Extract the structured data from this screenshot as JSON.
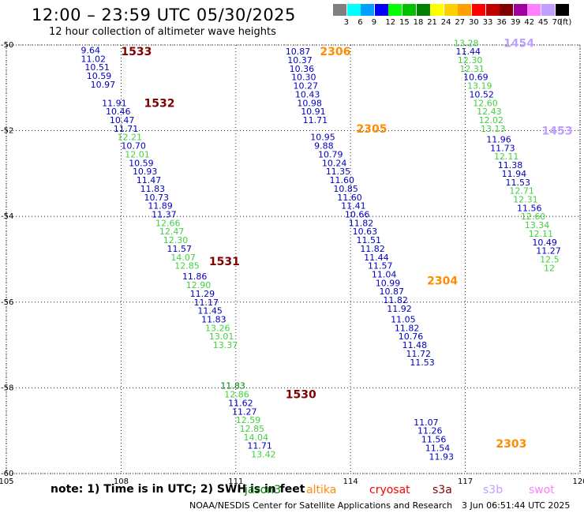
{
  "header": {
    "title": "12:00 – 23:59 UTC 05/30/2025",
    "subtitle": "12 hour collection of altimeter wave heights"
  },
  "colorbar": {
    "unit": "(ft)",
    "labels": [
      "3",
      "6",
      "9",
      "12",
      "15",
      "18",
      "21",
      "24",
      "27",
      "30",
      "33",
      "36",
      "39",
      "42",
      "45",
      "70"
    ],
    "colors": [
      "#808080",
      "#00ffff",
      "#00a0ff",
      "#0000ff",
      "#00ff00",
      "#00c000",
      "#008000",
      "#ffff00",
      "#ffd000",
      "#ffa000",
      "#ff0000",
      "#c00000",
      "#800000",
      "#a000a0",
      "#ff80ff",
      "#c0a0ff",
      "#000000"
    ]
  },
  "footer": {
    "note": "note:  1) Time is in UTC; 2) SWH is in feet",
    "satellites": [
      {
        "name": "jason3",
        "color": "#008000"
      },
      {
        "name": "altika",
        "color": "#ff8c00"
      },
      {
        "name": "cryosat",
        "color": "#ff0000"
      },
      {
        "name": "s3a",
        "color": "#800000"
      },
      {
        "name": "s3b",
        "color": "#c0a0ff"
      },
      {
        "name": "swot",
        "color": "#ff80ff"
      }
    ],
    "credits": "NOAA/NESDIS Center for Satellite Applications and Research",
    "timestamp": "3 Jun 06:51:44 UTC 2025"
  },
  "chart_data": {
    "type": "scatter",
    "x_ticks": [
      "105",
      "108",
      "111",
      "114",
      "117",
      "120"
    ],
    "y_ticks": [
      "-50",
      "-52",
      "-54",
      "-56",
      "-58",
      "-60"
    ],
    "xlim": [
      105,
      120
    ],
    "ylim": [
      -60,
      -50
    ],
    "grid": true,
    "pass_labels": [
      {
        "text": "1533",
        "lon": 108.0,
        "lat": -50.15,
        "color": "#800000"
      },
      {
        "text": "1532",
        "lon": 108.6,
        "lat": -51.35,
        "color": "#800000"
      },
      {
        "text": "1531",
        "lon": 110.3,
        "lat": -55.05,
        "color": "#800000"
      },
      {
        "text": "1530",
        "lon": 112.3,
        "lat": -58.15,
        "color": "#800000"
      },
      {
        "text": "2306",
        "lon": 113.2,
        "lat": -50.15,
        "color": "#ff8c00"
      },
      {
        "text": "2305",
        "lon": 114.15,
        "lat": -51.95,
        "color": "#ff8c00"
      },
      {
        "text": "2304",
        "lon": 116.0,
        "lat": -55.5,
        "color": "#ff8c00"
      },
      {
        "text": "2303",
        "lon": 117.8,
        "lat": -59.3,
        "color": "#ff8c00"
      },
      {
        "text": "1454",
        "lon": 118.0,
        "lat": -49.95,
        "color": "#c0a0ff"
      },
      {
        "text": "1453",
        "lon": 119.0,
        "lat": -52.0,
        "color": "#c0a0ff"
      }
    ],
    "series": [
      {
        "name": "1533",
        "color": "#0000c0",
        "points": [
          {
            "lon": 106.95,
            "lat": -50.12,
            "swh": "9.64"
          },
          {
            "lon": 106.95,
            "lat": -50.32,
            "swh": "11.02"
          },
          {
            "lon": 107.05,
            "lat": -50.52,
            "swh": "10.51"
          },
          {
            "lon": 107.1,
            "lat": -50.72,
            "swh": "10.59"
          },
          {
            "lon": 107.2,
            "lat": -50.92,
            "swh": "10.97"
          }
        ]
      },
      {
        "name": "1532",
        "color": "#0000c0",
        "points": [
          {
            "lon": 107.5,
            "lat": -51.35,
            "swh": "11.91",
            "color": "#0000c0"
          },
          {
            "lon": 107.6,
            "lat": -51.55,
            "swh": "10.46",
            "color": "#0000c0"
          },
          {
            "lon": 107.7,
            "lat": -51.75,
            "swh": "10.47",
            "color": "#0000c0"
          },
          {
            "lon": 107.8,
            "lat": -51.95,
            "swh": "11.71",
            "color": "#0000c0"
          },
          {
            "lon": 107.9,
            "lat": -52.15,
            "swh": "12.21",
            "color": "#40d040"
          },
          {
            "lon": 108.0,
            "lat": -52.35,
            "swh": "10.70",
            "color": "#0000c0"
          },
          {
            "lon": 108.1,
            "lat": -52.55,
            "swh": "12.01",
            "color": "#40d040"
          },
          {
            "lon": 108.2,
            "lat": -52.75,
            "swh": "10.59",
            "color": "#0000c0"
          },
          {
            "lon": 108.3,
            "lat": -52.95,
            "swh": "10.93",
            "color": "#0000c0"
          },
          {
            "lon": 108.4,
            "lat": -53.15,
            "swh": "11.47",
            "color": "#0000c0"
          },
          {
            "lon": 108.5,
            "lat": -53.35,
            "swh": "11.83",
            "color": "#0000c0"
          },
          {
            "lon": 108.6,
            "lat": -53.55,
            "swh": "10.73",
            "color": "#0000c0"
          },
          {
            "lon": 108.7,
            "lat": -53.75,
            "swh": "11.89",
            "color": "#0000c0"
          },
          {
            "lon": 108.8,
            "lat": -53.95,
            "swh": "11.37",
            "color": "#0000c0"
          },
          {
            "lon": 108.9,
            "lat": -54.15,
            "swh": "12.66",
            "color": "#40d040"
          },
          {
            "lon": 109.0,
            "lat": -54.35,
            "swh": "12.47",
            "color": "#40d040"
          },
          {
            "lon": 109.1,
            "lat": -54.55,
            "swh": "12.30",
            "color": "#40d040"
          },
          {
            "lon": 109.2,
            "lat": -54.75,
            "swh": "11.57",
            "color": "#0000c0"
          },
          {
            "lon": 109.3,
            "lat": -54.95,
            "swh": "14.07",
            "color": "#40d040"
          },
          {
            "lon": 109.4,
            "lat": -55.15,
            "swh": "12.85",
            "color": "#40d040"
          }
        ]
      },
      {
        "name": "1531",
        "color": "#0000c0",
        "points": [
          {
            "lon": 109.6,
            "lat": -55.4,
            "swh": "11.86",
            "color": "#0000c0"
          },
          {
            "lon": 109.7,
            "lat": -55.6,
            "swh": "12.90",
            "color": "#40d040"
          },
          {
            "lon": 109.8,
            "lat": -55.8,
            "swh": "11.29",
            "color": "#0000c0"
          },
          {
            "lon": 109.9,
            "lat": -56.0,
            "swh": "11.17",
            "color": "#0000c0"
          },
          {
            "lon": 110.0,
            "lat": -56.2,
            "swh": "11.45",
            "color": "#0000c0"
          },
          {
            "lon": 110.1,
            "lat": -56.4,
            "swh": "11.83",
            "color": "#0000c0"
          },
          {
            "lon": 110.2,
            "lat": -56.6,
            "swh": "13.26",
            "color": "#40d040"
          },
          {
            "lon": 110.3,
            "lat": -56.8,
            "swh": "13.01",
            "color": "#40d040"
          },
          {
            "lon": 110.4,
            "lat": -57.0,
            "swh": "13.37",
            "color": "#40d040"
          }
        ]
      },
      {
        "name": "1530",
        "color": "#0000c0",
        "points": [
          {
            "lon": 110.6,
            "lat": -57.95,
            "swh": "11.83",
            "color": "#008000"
          },
          {
            "lon": 110.7,
            "lat": -58.15,
            "swh": "12.86",
            "color": "#40d040"
          },
          {
            "lon": 110.8,
            "lat": -58.35,
            "swh": "11.62",
            "color": "#0000c0"
          },
          {
            "lon": 110.9,
            "lat": -58.55,
            "swh": "11.27",
            "color": "#0000c0"
          },
          {
            "lon": 111.0,
            "lat": -58.75,
            "swh": "12.59",
            "color": "#40d040"
          },
          {
            "lon": 111.1,
            "lat": -58.95,
            "swh": "12.85",
            "color": "#40d040"
          },
          {
            "lon": 111.2,
            "lat": -59.15,
            "swh": "14.04",
            "color": "#40d040"
          },
          {
            "lon": 111.3,
            "lat": -59.35,
            "swh": "11.71",
            "color": "#0000c0"
          },
          {
            "lon": 111.4,
            "lat": -59.55,
            "swh": "13.42",
            "color": "#40d040"
          }
        ]
      },
      {
        "name": "2306",
        "color": "#0000c0",
        "points": [
          {
            "lon": 112.3,
            "lat": -50.15,
            "swh": "10.87"
          },
          {
            "lon": 112.35,
            "lat": -50.35,
            "swh": "10.37"
          },
          {
            "lon": 112.4,
            "lat": -50.55,
            "swh": "10.36"
          },
          {
            "lon": 112.45,
            "lat": -50.75,
            "swh": "10.30"
          },
          {
            "lon": 112.5,
            "lat": -50.95,
            "swh": "10.27"
          },
          {
            "lon": 112.55,
            "lat": -51.15,
            "swh": "10.43"
          },
          {
            "lon": 112.6,
            "lat": -51.35,
            "swh": "10.98"
          },
          {
            "lon": 112.7,
            "lat": -51.55,
            "swh": "10.91"
          },
          {
            "lon": 112.75,
            "lat": -51.75,
            "swh": "11.71"
          }
        ]
      },
      {
        "name": "2305",
        "color": "#0000c0",
        "points": [
          {
            "lon": 112.95,
            "lat": -52.15,
            "swh": "10.95"
          },
          {
            "lon": 113.05,
            "lat": -52.35,
            "swh": "9.88"
          },
          {
            "lon": 113.15,
            "lat": -52.55,
            "swh": "10.79"
          },
          {
            "lon": 113.25,
            "lat": -52.75,
            "swh": "10.24"
          },
          {
            "lon": 113.35,
            "lat": -52.95,
            "swh": "11.35"
          },
          {
            "lon": 113.45,
            "lat": -53.15,
            "swh": "11.60"
          },
          {
            "lon": 113.55,
            "lat": -53.35,
            "swh": "10.85"
          },
          {
            "lon": 113.65,
            "lat": -53.55,
            "swh": "11.60"
          },
          {
            "lon": 113.75,
            "lat": -53.75,
            "swh": "11.41"
          },
          {
            "lon": 113.85,
            "lat": -53.95,
            "swh": "10.66"
          },
          {
            "lon": 113.95,
            "lat": -54.15,
            "swh": "11.82"
          },
          {
            "lon": 114.05,
            "lat": -54.35,
            "swh": "10.63"
          },
          {
            "lon": 114.15,
            "lat": -54.55,
            "swh": "11.51"
          },
          {
            "lon": 114.25,
            "lat": -54.75,
            "swh": "11.82"
          },
          {
            "lon": 114.35,
            "lat": -54.95,
            "swh": "11.44"
          },
          {
            "lon": 114.45,
            "lat": -55.15,
            "swh": "11.57"
          },
          {
            "lon": 114.55,
            "lat": -55.35,
            "swh": "11.04"
          },
          {
            "lon": 114.65,
            "lat": -55.55,
            "swh": "10.99"
          },
          {
            "lon": 114.75,
            "lat": -55.75,
            "swh": "10.87"
          },
          {
            "lon": 114.85,
            "lat": -55.95,
            "swh": "11.82"
          },
          {
            "lon": 114.95,
            "lat": -56.15,
            "swh": "11.92"
          }
        ]
      },
      {
        "name": "2304",
        "color": "#0000c0",
        "points": [
          {
            "lon": 115.05,
            "lat": -56.4,
            "swh": "11.05"
          },
          {
            "lon": 115.15,
            "lat": -56.6,
            "swh": "11.82"
          },
          {
            "lon": 115.25,
            "lat": -56.8,
            "swh": "10.76"
          },
          {
            "lon": 115.35,
            "lat": -57.0,
            "swh": "11.48"
          },
          {
            "lon": 115.45,
            "lat": -57.2,
            "swh": "11.72"
          },
          {
            "lon": 115.55,
            "lat": -57.4,
            "swh": "11.53"
          },
          {
            "lon": 115.65,
            "lat": -58.8,
            "swh": "11.07"
          },
          {
            "lon": 115.75,
            "lat": -59.0,
            "swh": "11.26"
          },
          {
            "lon": 115.85,
            "lat": -59.2,
            "swh": "11.56"
          },
          {
            "lon": 115.95,
            "lat": -59.4,
            "swh": "11.54"
          },
          {
            "lon": 116.05,
            "lat": -59.6,
            "swh": "11.93"
          }
        ]
      },
      {
        "name": "1454",
        "color": "#0000c0",
        "points": [
          {
            "lon": 116.7,
            "lat": -49.95,
            "swh": "13.28",
            "color": "#40d040"
          },
          {
            "lon": 116.75,
            "lat": -50.15,
            "swh": "11.44",
            "color": "#0000c0"
          },
          {
            "lon": 116.8,
            "lat": -50.35,
            "swh": "12.30",
            "color": "#40d040"
          },
          {
            "lon": 116.85,
            "lat": -50.55,
            "swh": "12.31",
            "color": "#40d040"
          },
          {
            "lon": 116.95,
            "lat": -50.75,
            "swh": "10.69",
            "color": "#0000c0"
          },
          {
            "lon": 117.05,
            "lat": -50.95,
            "swh": "13.19",
            "color": "#40d040"
          },
          {
            "lon": 117.1,
            "lat": -51.15,
            "swh": "10.52",
            "color": "#0000c0"
          },
          {
            "lon": 117.2,
            "lat": -51.35,
            "swh": "12.60",
            "color": "#40d040"
          },
          {
            "lon": 117.3,
            "lat": -51.55,
            "swh": "12.43",
            "color": "#40d040"
          },
          {
            "lon": 117.35,
            "lat": -51.75,
            "swh": "12.02",
            "color": "#40d040"
          },
          {
            "lon": 117.4,
            "lat": -51.95,
            "swh": "13.13",
            "color": "#40d040"
          }
        ]
      },
      {
        "name": "1453",
        "color": "#0000c0",
        "points": [
          {
            "lon": 117.55,
            "lat": -52.2,
            "swh": "11.96",
            "color": "#0000c0"
          },
          {
            "lon": 117.65,
            "lat": -52.4,
            "swh": "11.73",
            "color": "#0000c0"
          },
          {
            "lon": 117.75,
            "lat": -52.6,
            "swh": "12.11",
            "color": "#40d040"
          },
          {
            "lon": 117.85,
            "lat": -52.8,
            "swh": "11.38",
            "color": "#0000c0"
          },
          {
            "lon": 117.95,
            "lat": -53.0,
            "swh": "11.94",
            "color": "#0000c0"
          },
          {
            "lon": 118.05,
            "lat": -53.2,
            "swh": "11.53",
            "color": "#0000c0"
          },
          {
            "lon": 118.15,
            "lat": -53.4,
            "swh": "12.71",
            "color": "#40d040"
          },
          {
            "lon": 118.25,
            "lat": -53.6,
            "swh": "12.31",
            "color": "#40d040"
          },
          {
            "lon": 118.35,
            "lat": -53.8,
            "swh": "11.56",
            "color": "#0000c0"
          },
          {
            "lon": 118.45,
            "lat": -54.0,
            "swh": "12.60",
            "color": "#40d040"
          },
          {
            "lon": 118.55,
            "lat": -54.2,
            "swh": "13.34",
            "color": "#40d040"
          },
          {
            "lon": 118.65,
            "lat": -54.4,
            "swh": "12.11",
            "color": "#40d040"
          },
          {
            "lon": 118.75,
            "lat": -54.6,
            "swh": "10.49",
            "color": "#0000c0"
          },
          {
            "lon": 118.85,
            "lat": -54.8,
            "swh": "11.27",
            "color": "#0000c0"
          },
          {
            "lon": 118.95,
            "lat": -55.0,
            "swh": "12.5",
            "color": "#40d040"
          },
          {
            "lon": 119.05,
            "lat": -55.2,
            "swh": "12",
            "color": "#40d040"
          }
        ]
      }
    ]
  }
}
